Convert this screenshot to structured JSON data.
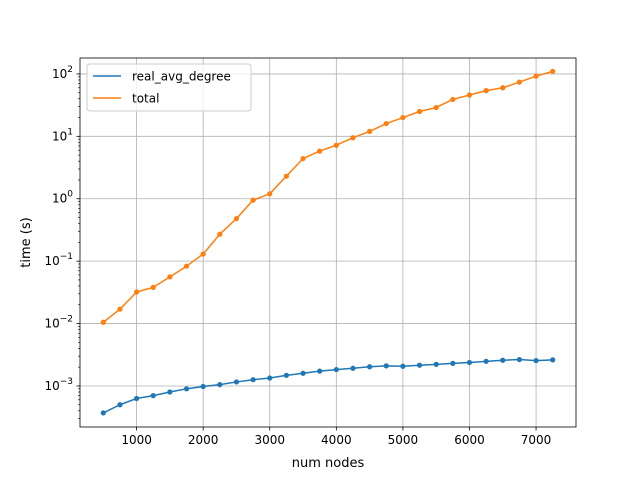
{
  "chart_data": {
    "type": "line",
    "title": "",
    "xlabel": "num nodes",
    "ylabel": "time (s)",
    "x_scale": "linear",
    "y_scale": "log",
    "xlim": [
      150,
      7600
    ],
    "ylim": [
      0.00022,
      180
    ],
    "x_ticks": [
      1000,
      2000,
      3000,
      4000,
      5000,
      6000,
      7000
    ],
    "x_tick_labels": [
      "1000",
      "2000",
      "3000",
      "4000",
      "5000",
      "6000",
      "7000"
    ],
    "y_tick_exponents": [
      -3,
      -2,
      -1,
      0,
      1,
      2
    ],
    "grid": true,
    "legend_position": "upper-left",
    "x": [
      500,
      750,
      1000,
      1250,
      1500,
      1750,
      2000,
      2250,
      2500,
      2750,
      3000,
      3250,
      3500,
      3750,
      4000,
      4250,
      4500,
      4750,
      5000,
      5250,
      5500,
      5750,
      6000,
      6250,
      6500,
      6750,
      7000,
      7250
    ],
    "series": [
      {
        "name": "real_avg_degree",
        "color": "#1f77b4",
        "values": [
          0.00037,
          0.0005,
          0.00063,
          0.0007,
          0.0008,
          0.0009,
          0.00098,
          0.00105,
          0.00116,
          0.00126,
          0.00134,
          0.00148,
          0.0016,
          0.00173,
          0.00183,
          0.00192,
          0.00203,
          0.0021,
          0.00207,
          0.00215,
          0.00222,
          0.0023,
          0.00238,
          0.00248,
          0.00258,
          0.00265,
          0.00255,
          0.00262
        ]
      },
      {
        "name": "total",
        "color": "#ff7f0e",
        "values": [
          0.0105,
          0.017,
          0.032,
          0.038,
          0.056,
          0.083,
          0.13,
          0.27,
          0.48,
          0.95,
          1.2,
          2.3,
          4.4,
          5.8,
          7.2,
          9.5,
          12,
          16,
          20,
          25,
          29,
          39,
          46,
          54,
          60,
          74,
          92,
          110
        ]
      }
    ]
  }
}
